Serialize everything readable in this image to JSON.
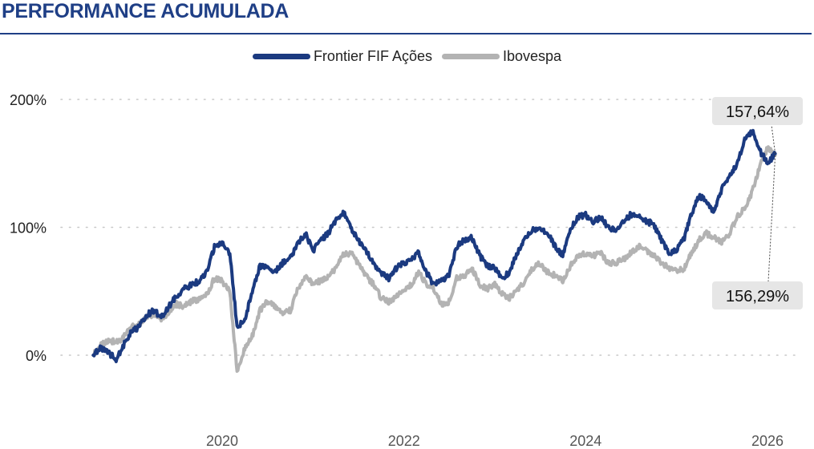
{
  "header": {
    "title": "PERFORMANCE ACUMULADA"
  },
  "colors": {
    "fund": "#1b3a80",
    "index": "#b3b3b3",
    "accent": "#1f3f86",
    "callout_bg": "#e6e6e6"
  },
  "chart_data": {
    "type": "line",
    "title": "",
    "xlabel": "",
    "ylabel": "",
    "grid": "horizontal dotted",
    "legend_position": "top-center",
    "xlim": [
      "2018-08-01",
      "2026-04-01"
    ],
    "ylim": [
      -25,
      200
    ],
    "yticks": [
      {
        "value": 0,
        "label": "0%"
      },
      {
        "value": 100,
        "label": "100%"
      },
      {
        "value": 200,
        "label": "200%"
      }
    ],
    "xticks": [
      {
        "value": "2020-01-01",
        "label": "2020"
      },
      {
        "value": "2022-01-01",
        "label": "2022"
      },
      {
        "value": "2024-01-01",
        "label": "2024"
      },
      {
        "value": "2026-01-01",
        "label": "2026"
      }
    ],
    "series": [
      {
        "name": "Frontier FIF Ações",
        "color": "#1b3a80",
        "points": [
          [
            "2018-08-01",
            0
          ],
          [
            "2018-09-01",
            6
          ],
          [
            "2018-10-01",
            2
          ],
          [
            "2018-11-01",
            -3
          ],
          [
            "2018-12-01",
            8
          ],
          [
            "2019-01-01",
            18
          ],
          [
            "2019-02-01",
            22
          ],
          [
            "2019-03-01",
            31
          ],
          [
            "2019-04-01",
            35
          ],
          [
            "2019-05-01",
            30
          ],
          [
            "2019-06-01",
            38
          ],
          [
            "2019-07-01",
            46
          ],
          [
            "2019-08-01",
            52
          ],
          [
            "2019-09-01",
            55
          ],
          [
            "2019-10-01",
            58
          ],
          [
            "2019-11-01",
            65
          ],
          [
            "2019-12-01",
            85
          ],
          [
            "2020-01-01",
            88
          ],
          [
            "2020-02-01",
            80
          ],
          [
            "2020-03-01",
            22
          ],
          [
            "2020-04-01",
            28
          ],
          [
            "2020-05-01",
            50
          ],
          [
            "2020-06-01",
            70
          ],
          [
            "2020-07-01",
            68
          ],
          [
            "2020-08-01",
            65
          ],
          [
            "2020-09-01",
            72
          ],
          [
            "2020-10-01",
            76
          ],
          [
            "2020-11-01",
            88
          ],
          [
            "2020-12-01",
            95
          ],
          [
            "2021-01-01",
            82
          ],
          [
            "2021-02-01",
            90
          ],
          [
            "2021-03-01",
            95
          ],
          [
            "2021-04-01",
            105
          ],
          [
            "2021-05-01",
            112
          ],
          [
            "2021-06-01",
            100
          ],
          [
            "2021-07-01",
            90
          ],
          [
            "2021-08-01",
            82
          ],
          [
            "2021-09-01",
            72
          ],
          [
            "2021-10-01",
            65
          ],
          [
            "2021-11-01",
            60
          ],
          [
            "2021-12-01",
            68
          ],
          [
            "2022-01-01",
            72
          ],
          [
            "2022-02-01",
            76
          ],
          [
            "2022-03-01",
            80
          ],
          [
            "2022-04-01",
            65
          ],
          [
            "2022-05-01",
            55
          ],
          [
            "2022-06-01",
            58
          ],
          [
            "2022-07-01",
            62
          ],
          [
            "2022-08-01",
            85
          ],
          [
            "2022-09-01",
            90
          ],
          [
            "2022-10-01",
            92
          ],
          [
            "2022-11-01",
            78
          ],
          [
            "2022-12-01",
            70
          ],
          [
            "2023-01-01",
            68
          ],
          [
            "2023-02-01",
            60
          ],
          [
            "2023-03-01",
            65
          ],
          [
            "2023-04-01",
            80
          ],
          [
            "2023-05-01",
            90
          ],
          [
            "2023-06-01",
            98
          ],
          [
            "2023-07-01",
            100
          ],
          [
            "2023-08-01",
            95
          ],
          [
            "2023-09-01",
            85
          ],
          [
            "2023-10-01",
            78
          ],
          [
            "2023-11-01",
            98
          ],
          [
            "2023-12-01",
            108
          ],
          [
            "2024-01-01",
            110
          ],
          [
            "2024-02-01",
            104
          ],
          [
            "2024-03-01",
            108
          ],
          [
            "2024-04-01",
            100
          ],
          [
            "2024-05-01",
            98
          ],
          [
            "2024-06-01",
            105
          ],
          [
            "2024-07-01",
            110
          ],
          [
            "2024-08-01",
            108
          ],
          [
            "2024-09-01",
            105
          ],
          [
            "2024-10-01",
            102
          ],
          [
            "2024-11-01",
            90
          ],
          [
            "2024-12-01",
            80
          ],
          [
            "2025-01-01",
            82
          ],
          [
            "2025-02-01",
            92
          ],
          [
            "2025-03-01",
            110
          ],
          [
            "2025-04-01",
            125
          ],
          [
            "2025-05-01",
            120
          ],
          [
            "2025-06-01",
            112
          ],
          [
            "2025-07-01",
            130
          ],
          [
            "2025-08-01",
            140
          ],
          [
            "2025-09-01",
            150
          ],
          [
            "2025-10-01",
            168
          ],
          [
            "2025-11-01",
            175
          ],
          [
            "2025-12-01",
            160
          ],
          [
            "2026-01-01",
            150
          ],
          [
            "2026-02-01",
            157.64
          ]
        ]
      },
      {
        "name": "Ibovespa",
        "color": "#b3b3b3",
        "points": [
          [
            "2018-08-01",
            0
          ],
          [
            "2018-09-01",
            8
          ],
          [
            "2018-10-01",
            12
          ],
          [
            "2018-11-01",
            10
          ],
          [
            "2018-12-01",
            14
          ],
          [
            "2019-01-01",
            22
          ],
          [
            "2019-02-01",
            24
          ],
          [
            "2019-03-01",
            30
          ],
          [
            "2019-04-01",
            32
          ],
          [
            "2019-05-01",
            28
          ],
          [
            "2019-06-01",
            34
          ],
          [
            "2019-07-01",
            40
          ],
          [
            "2019-08-01",
            38
          ],
          [
            "2019-09-01",
            42
          ],
          [
            "2019-10-01",
            44
          ],
          [
            "2019-11-01",
            48
          ],
          [
            "2019-12-01",
            60
          ],
          [
            "2020-01-01",
            58
          ],
          [
            "2020-02-01",
            50
          ],
          [
            "2020-03-01",
            -12
          ],
          [
            "2020-04-01",
            5
          ],
          [
            "2020-05-01",
            15
          ],
          [
            "2020-06-01",
            35
          ],
          [
            "2020-07-01",
            42
          ],
          [
            "2020-08-01",
            38
          ],
          [
            "2020-09-01",
            32
          ],
          [
            "2020-10-01",
            35
          ],
          [
            "2020-11-01",
            52
          ],
          [
            "2020-12-01",
            62
          ],
          [
            "2021-01-01",
            56
          ],
          [
            "2021-02-01",
            58
          ],
          [
            "2021-03-01",
            62
          ],
          [
            "2021-04-01",
            68
          ],
          [
            "2021-05-01",
            78
          ],
          [
            "2021-06-01",
            80
          ],
          [
            "2021-07-01",
            72
          ],
          [
            "2021-08-01",
            62
          ],
          [
            "2021-09-01",
            55
          ],
          [
            "2021-10-01",
            45
          ],
          [
            "2021-11-01",
            42
          ],
          [
            "2021-12-01",
            45
          ],
          [
            "2022-01-01",
            52
          ],
          [
            "2022-02-01",
            55
          ],
          [
            "2022-03-01",
            65
          ],
          [
            "2022-04-01",
            55
          ],
          [
            "2022-05-01",
            52
          ],
          [
            "2022-06-01",
            40
          ],
          [
            "2022-07-01",
            42
          ],
          [
            "2022-08-01",
            60
          ],
          [
            "2022-09-01",
            62
          ],
          [
            "2022-10-01",
            68
          ],
          [
            "2022-11-01",
            55
          ],
          [
            "2022-12-01",
            52
          ],
          [
            "2023-01-01",
            55
          ],
          [
            "2023-02-01",
            48
          ],
          [
            "2023-03-01",
            45
          ],
          [
            "2023-04-01",
            50
          ],
          [
            "2023-05-01",
            58
          ],
          [
            "2023-06-01",
            68
          ],
          [
            "2023-07-01",
            72
          ],
          [
            "2023-08-01",
            65
          ],
          [
            "2023-09-01",
            62
          ],
          [
            "2023-10-01",
            58
          ],
          [
            "2023-11-01",
            70
          ],
          [
            "2023-12-01",
            78
          ],
          [
            "2024-01-01",
            80
          ],
          [
            "2024-02-01",
            78
          ],
          [
            "2024-03-01",
            80
          ],
          [
            "2024-04-01",
            72
          ],
          [
            "2024-05-01",
            72
          ],
          [
            "2024-06-01",
            75
          ],
          [
            "2024-07-01",
            80
          ],
          [
            "2024-08-01",
            85
          ],
          [
            "2024-09-01",
            82
          ],
          [
            "2024-10-01",
            78
          ],
          [
            "2024-11-01",
            72
          ],
          [
            "2024-12-01",
            68
          ],
          [
            "2025-01-01",
            66
          ],
          [
            "2025-02-01",
            68
          ],
          [
            "2025-03-01",
            80
          ],
          [
            "2025-04-01",
            90
          ],
          [
            "2025-05-01",
            95
          ],
          [
            "2025-06-01",
            92
          ],
          [
            "2025-07-01",
            88
          ],
          [
            "2025-08-01",
            95
          ],
          [
            "2025-09-01",
            108
          ],
          [
            "2025-10-01",
            115
          ],
          [
            "2025-11-01",
            128
          ],
          [
            "2025-12-01",
            148
          ],
          [
            "2026-01-01",
            162
          ],
          [
            "2026-02-01",
            156.29
          ]
        ]
      }
    ],
    "annotations": [
      {
        "series": "Frontier FIF Ações",
        "label": "157,64%",
        "x": "2026-02-01",
        "y": 157.64
      },
      {
        "series": "Ibovespa",
        "label": "156,29%",
        "x": "2026-02-01",
        "y": 156.29
      }
    ]
  }
}
